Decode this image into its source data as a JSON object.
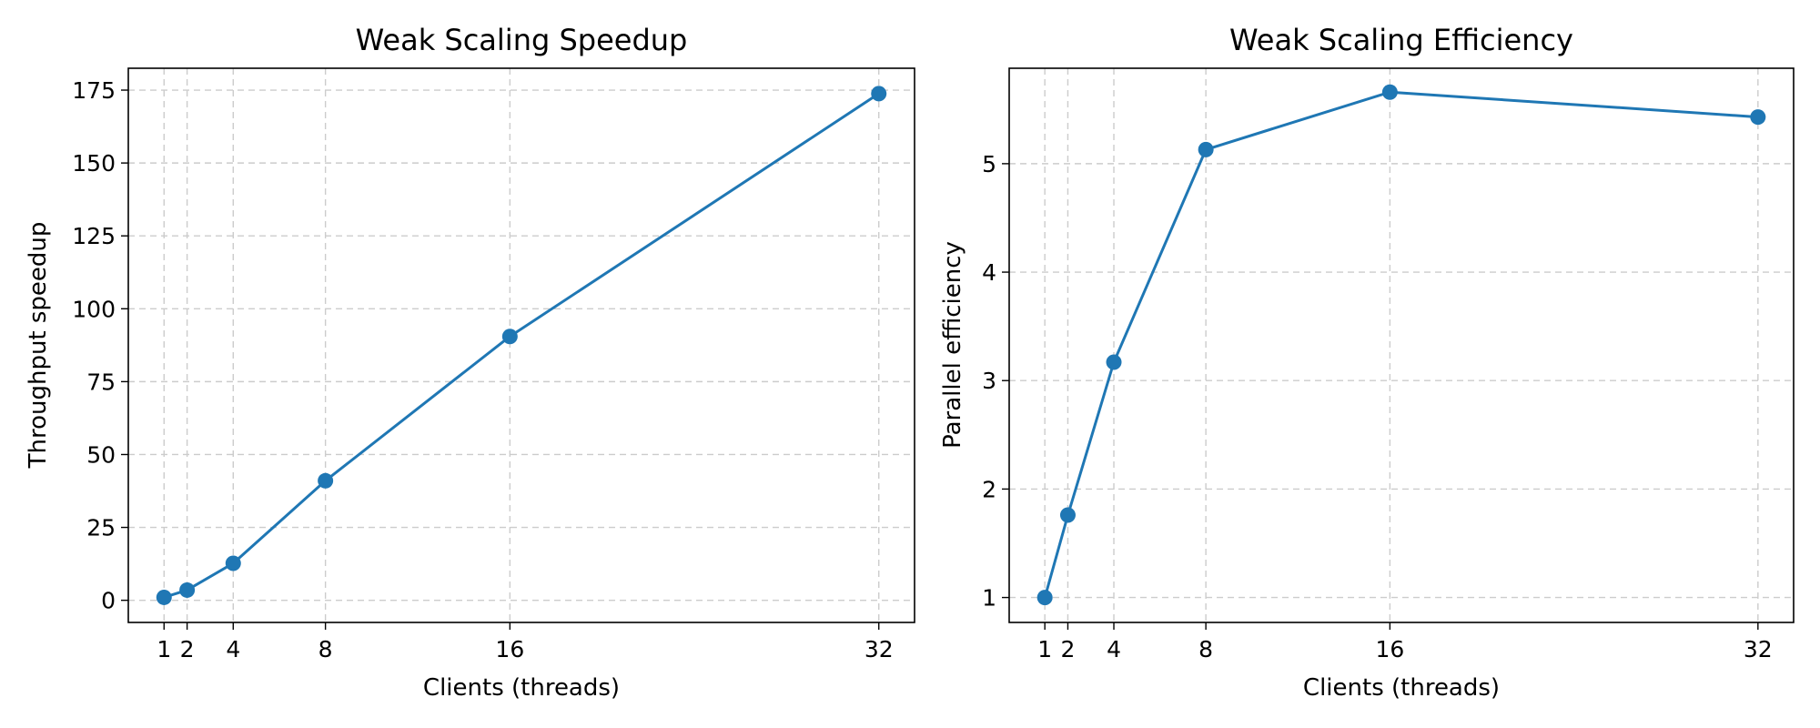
{
  "colors": {
    "series": "#1f77b4",
    "grid": "#cccccc",
    "axes": "#000000",
    "background": "#ffffff"
  },
  "chart_data": [
    {
      "type": "line",
      "title": "Weak Scaling Speedup",
      "xlabel": "Clients (threads)",
      "ylabel": "Throughput speedup",
      "x": [
        1,
        2,
        4,
        8,
        16,
        32
      ],
      "xticks": [
        "1",
        "2",
        "4",
        "8",
        "16",
        "32"
      ],
      "yticks": [
        "0",
        "25",
        "50",
        "75",
        "100",
        "125",
        "150",
        "175"
      ],
      "xlim": [
        -0.55,
        33.55
      ],
      "ylim": [
        -7.6,
        182.5
      ],
      "grid": true,
      "marker": "circle",
      "series": [
        {
          "values": [
            1,
            3.5,
            12.7,
            41,
            90.5,
            173.8
          ]
        }
      ]
    },
    {
      "type": "line",
      "title": "Weak Scaling Efficiency",
      "xlabel": "Clients (threads)",
      "ylabel": "Parallel efficiency",
      "x": [
        1,
        2,
        4,
        8,
        16,
        32
      ],
      "xticks": [
        "1",
        "2",
        "4",
        "8",
        "16",
        "32"
      ],
      "yticks": [
        "1",
        "2",
        "3",
        "4",
        "5"
      ],
      "xlim": [
        -0.55,
        33.55
      ],
      "ylim": [
        0.77,
        5.88
      ],
      "grid": true,
      "marker": "circle",
      "series": [
        {
          "values": [
            1.0,
            1.76,
            3.17,
            5.13,
            5.66,
            5.43
          ]
        }
      ]
    }
  ]
}
